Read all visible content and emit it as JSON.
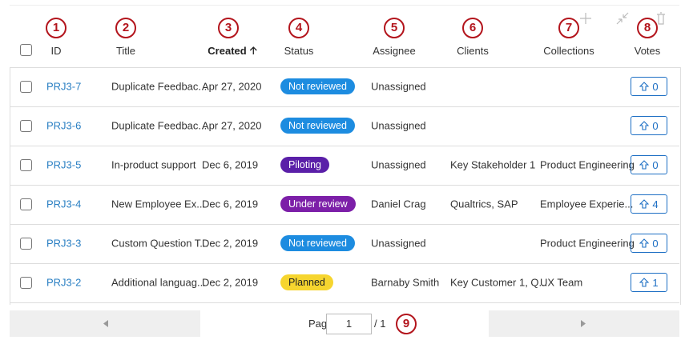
{
  "header": {
    "columns": [
      "ID",
      "Title",
      "Created",
      "Status",
      "Assignee",
      "Clients",
      "Collections",
      "Votes"
    ]
  },
  "markers": [
    "1",
    "2",
    "3",
    "4",
    "5",
    "6",
    "7",
    "8",
    "9"
  ],
  "table": {
    "rows": [
      {
        "id": "PRJ3-7",
        "title": "Duplicate Feedbac...",
        "created": "Apr 27, 2020",
        "status": "Not reviewed",
        "status_color": "#1d8ce0",
        "assignee": "Unassigned",
        "clients": null,
        "collections": null,
        "votes": 0
      },
      {
        "id": "PRJ3-6",
        "title": "Duplicate Feedbac...",
        "created": "Apr 27, 2020",
        "status": "Not reviewed",
        "status_color": "#1d8ce0",
        "assignee": "Unassigned",
        "clients": null,
        "collections": null,
        "votes": 0
      },
      {
        "id": "PRJ3-5",
        "title": "In-product support",
        "created": "Dec 6, 2019",
        "status": "Piloting",
        "status_color": "#5a1fa8",
        "assignee": "Unassigned",
        "clients": "Key Stakeholder 1",
        "collections": "Product Engineering",
        "votes": 0
      },
      {
        "id": "PRJ3-4",
        "title": "New Employee Ex...",
        "created": "Dec 6, 2019",
        "status": "Under review",
        "status_color": "#7c1fa8",
        "assignee": "Daniel Crag",
        "clients": "Qualtrics, SAP",
        "collections": "Employee Experie...",
        "votes": 4
      },
      {
        "id": "PRJ3-3",
        "title": "Custom Question T...",
        "created": "Dec 2, 2019",
        "status": "Not reviewed",
        "status_color": "#1d8ce0",
        "assignee": "Unassigned",
        "clients": null,
        "collections": "Product Engineering",
        "votes": 0
      },
      {
        "id": "PRJ3-2",
        "title": "Additional languag...",
        "created": "Dec 2, 2019",
        "status": "Planned",
        "status_color": "#f6d52f",
        "assignee": "Barnaby Smith",
        "clients": "Key Customer 1, Q...",
        "collections": "UX Team",
        "votes": 1
      }
    ]
  },
  "pagination": {
    "label": "Page",
    "current": 1,
    "total": "/ 1"
  }
}
